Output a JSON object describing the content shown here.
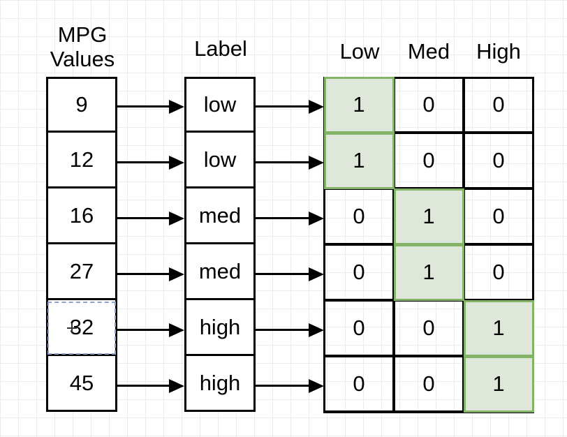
{
  "headers": {
    "mpg_line1": "MPG",
    "mpg_line2": "Values",
    "label": "Label",
    "low": "Low",
    "med": "Med",
    "high": "High"
  },
  "rows": [
    {
      "mpg": "9",
      "label": "low",
      "low": "1",
      "med": "0",
      "high": "0"
    },
    {
      "mpg": "12",
      "label": "low",
      "low": "1",
      "med": "0",
      "high": "0"
    },
    {
      "mpg": "16",
      "label": "med",
      "low": "0",
      "med": "1",
      "high": "0"
    },
    {
      "mpg": "27",
      "label": "med",
      "low": "0",
      "med": "1",
      "high": "0"
    },
    {
      "mpg": "32",
      "label": "high",
      "low": "0",
      "med": "0",
      "high": "1"
    },
    {
      "mpg": "45",
      "label": "high",
      "low": "0",
      "med": "0",
      "high": "1"
    }
  ],
  "colors": {
    "highlight_fill": "#dfe7da",
    "highlight_border": "#82b366",
    "grid": "#ececec"
  },
  "selected_row": 4
}
